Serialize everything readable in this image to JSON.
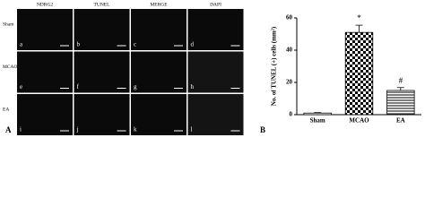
{
  "panel_a": {
    "letter": "A",
    "columns": [
      "NDRG2",
      "TUNEL",
      "MERGE",
      "DAPI"
    ],
    "rows": [
      "Sham",
      "MCAO",
      "EA"
    ],
    "panels": [
      [
        "a",
        "b",
        "c",
        "d"
      ],
      [
        "e",
        "f",
        "g",
        "h"
      ],
      [
        "i",
        "j",
        "k",
        "l"
      ]
    ]
  },
  "chart_data": {
    "type": "bar",
    "letter": "B",
    "y_label": "No. of TUNEL (+) cells (mm²)",
    "categories": [
      "Sham",
      "MCAO",
      "EA"
    ],
    "values": [
      1,
      51,
      15
    ],
    "errors": [
      0.3,
      4.5,
      1.8
    ],
    "annotations": [
      {
        "text": "*",
        "category": "MCAO"
      },
      {
        "text": "#",
        "category": "EA"
      }
    ],
    "color": "#000000",
    "ylim": [
      0,
      60
    ],
    "yticks": [
      0,
      20,
      40,
      60
    ],
    "grid": false
  }
}
